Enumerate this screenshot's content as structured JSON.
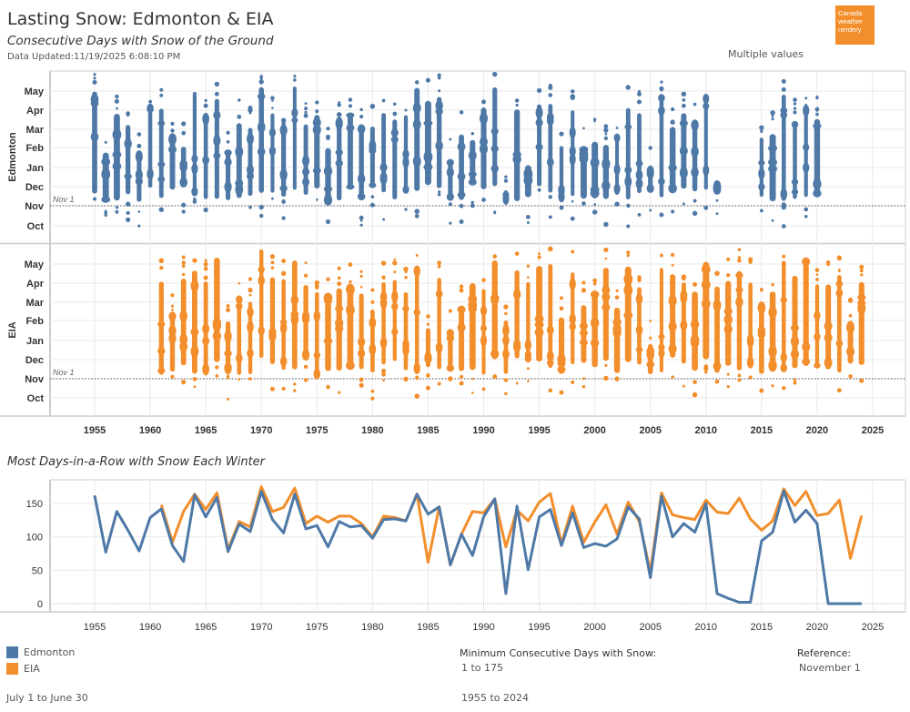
{
  "header": {
    "title": "Lasting Snow: Edmonton & EIA",
    "subtitle": "Consecutive Days with Snow of the Ground",
    "updated": "Data Updated:11/19/2025 6:08:10 PM",
    "logo_lines": [
      "Canada",
      "weather",
      "nerdery"
    ],
    "filter_value": "Multiple values"
  },
  "colors": {
    "edmonton": "#4e79a7",
    "eia": "#f28e2b",
    "logo": "#f28e2b",
    "grid": "#e9e9e9",
    "axis": "#cccccc"
  },
  "chart_data": [
    {
      "type": "scatter",
      "title": "Consecutive Days with Snow of the Ground",
      "x": "Winter year",
      "xlim": [
        1951,
        2028
      ],
      "x_ticks": [
        1955,
        1960,
        1965,
        1970,
        1975,
        1980,
        1985,
        1990,
        1995,
        2000,
        2005,
        2010,
        2015,
        2020,
        2025
      ],
      "y_ticks": [
        "May",
        "Apr",
        "Mar",
        "Feb",
        "Jan",
        "Dec",
        "Nov",
        "Oct"
      ],
      "reference_line": {
        "label": "Nov 1",
        "month": "Nov"
      },
      "panels": [
        {
          "name": "Edmonton",
          "color_key": "edmonton",
          "years": [
            1955,
            2020
          ],
          "missing_years": [
            2012,
            2013,
            2014
          ],
          "typical_span": [
            "Nov",
            "Apr"
          ]
        },
        {
          "name": "EIA",
          "color_key": "eia",
          "years": [
            1961,
            2024
          ],
          "missing_years": [],
          "typical_span": [
            "Nov",
            "Apr"
          ]
        }
      ]
    },
    {
      "type": "line",
      "title": "Most Days-in-a-Row with Snow Each Winter",
      "xlabel": "",
      "ylabel": "",
      "ylim": [
        0,
        175
      ],
      "y_ticks": [
        0,
        50,
        100,
        150
      ],
      "x_ticks": [
        1955,
        1960,
        1965,
        1970,
        1975,
        1980,
        1985,
        1990,
        1995,
        2000,
        2005,
        2010,
        2015,
        2020,
        2025
      ],
      "series": [
        {
          "name": "Edmonton",
          "color_key": "edmonton",
          "start_year": 1955,
          "values": [
            162,
            77,
            138,
            110,
            79,
            129,
            142,
            87,
            63,
            163,
            130,
            159,
            78,
            119,
            108,
            168,
            126,
            106,
            164,
            112,
            117,
            85,
            123,
            115,
            117,
            98,
            126,
            127,
            124,
            164,
            134,
            145,
            58,
            104,
            72,
            130,
            157,
            15,
            146,
            51,
            130,
            141,
            87,
            136,
            84,
            90,
            86,
            97,
            145,
            127,
            39,
            161,
            100,
            120,
            107,
            150,
            15,
            8,
            2,
            2,
            94,
            107,
            169,
            122,
            140,
            120,
            0,
            0,
            0,
            0
          ]
        },
        {
          "name": "EIA",
          "color_key": "eia",
          "start_year": 1961,
          "values": [
            148,
            92,
            138,
            164,
            141,
            166,
            81,
            123,
            115,
            175,
            138,
            144,
            173,
            120,
            131,
            122,
            131,
            131,
            120,
            100,
            131,
            129,
            124,
            164,
            62,
            145,
            58,
            104,
            138,
            136,
            157,
            85,
            140,
            124,
            152,
            165,
            90,
            146,
            92,
            122,
            148,
            104,
            152,
            123,
            48,
            166,
            133,
            129,
            126,
            155,
            137,
            135,
            158,
            127,
            110,
            124,
            172,
            147,
            168,
            132,
            135,
            155,
            68,
            132
          ]
        }
      ]
    }
  ],
  "legend": {
    "items": [
      {
        "label": "Edmonton",
        "color_key": "edmonton"
      },
      {
        "label": "EIA",
        "color_key": "eia"
      }
    ]
  },
  "footer": {
    "season_range": "July 1 to June 30",
    "min_days_label": "Minimum Consecutive Days with Snow:",
    "min_days_value": "1 to 175",
    "year_range": "1955 to 2024",
    "reference_label": "Reference:",
    "reference_value": "November 1"
  }
}
